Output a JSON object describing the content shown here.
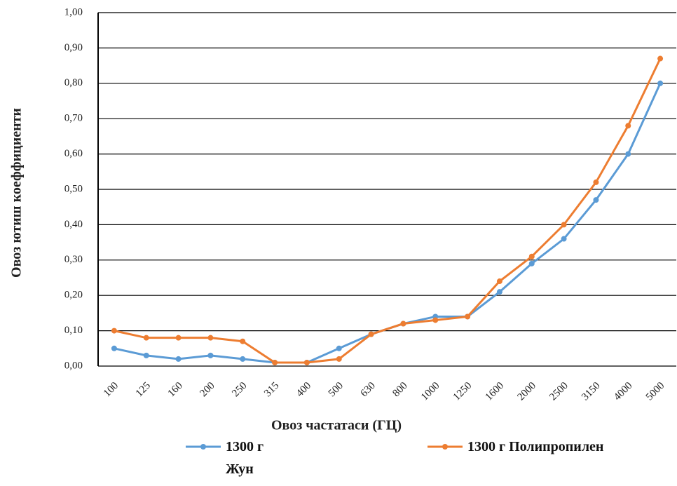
{
  "chart_data": {
    "type": "line",
    "x_label": "Овоз частатаси  (ГЦ)",
    "y_label": "Овоз ютиш коеффициенти",
    "categories": [
      "100",
      "125",
      "160",
      "200",
      "250",
      "315",
      "400",
      "500",
      "630",
      "800",
      "1000",
      "1250",
      "1600",
      "2000",
      "2500",
      "3150",
      "4000",
      "5000"
    ],
    "series": [
      {
        "name": "1300 г Жун",
        "color": "#5b9bd5",
        "values": [
          0.05,
          0.03,
          0.02,
          0.03,
          0.02,
          0.01,
          0.01,
          0.05,
          0.09,
          0.12,
          0.14,
          0.14,
          0.21,
          0.29,
          0.36,
          0.47,
          0.6,
          0.8
        ]
      },
      {
        "name": "1300 г Полипропилен",
        "color": "#ed7d31",
        "values": [
          0.1,
          0.08,
          0.08,
          0.08,
          0.07,
          0.01,
          0.01,
          0.02,
          0.09,
          0.12,
          0.13,
          0.14,
          0.24,
          0.31,
          0.4,
          0.52,
          0.68,
          0.87
        ]
      }
    ],
    "ylim": [
      0,
      1
    ],
    "yticks": [
      {
        "value": 0,
        "label": "0,00"
      },
      {
        "value": 0.1,
        "label": "0,10"
      },
      {
        "value": 0.2,
        "label": "0,20"
      },
      {
        "value": 0.3,
        "label": "0,30"
      },
      {
        "value": 0.4,
        "label": "0,40"
      },
      {
        "value": 0.5,
        "label": "0,50"
      },
      {
        "value": 0.6,
        "label": "0,60"
      },
      {
        "value": 0.7,
        "label": "0,70"
      },
      {
        "value": 0.8,
        "label": "0,80"
      },
      {
        "value": 0.9,
        "label": "0,90"
      },
      {
        "value": 1,
        "label": "1,00"
      }
    ],
    "grid": true
  }
}
